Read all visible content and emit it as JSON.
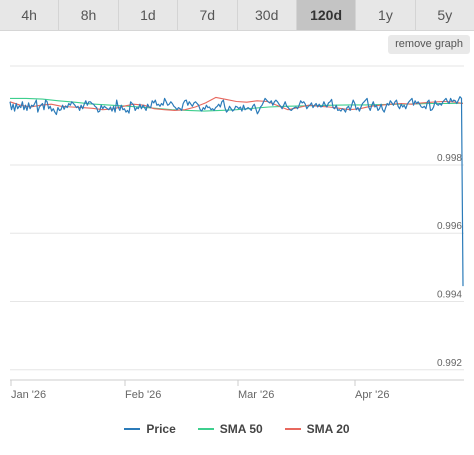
{
  "tabs": [
    {
      "label": "4h",
      "active": false
    },
    {
      "label": "8h",
      "active": false
    },
    {
      "label": "1d",
      "active": false
    },
    {
      "label": "7d",
      "active": false
    },
    {
      "label": "30d",
      "active": false
    },
    {
      "label": "120d",
      "active": true
    },
    {
      "label": "1y",
      "active": false
    },
    {
      "label": "5y",
      "active": false
    }
  ],
  "remove_button": "remove graph",
  "colors": {
    "price": "#2b7bb9",
    "sma50": "#3ecf8e",
    "sma20": "#e8685e"
  },
  "chart_data": {
    "type": "line",
    "title": "",
    "x_ticks": [
      "Jan '26",
      "Feb '26",
      "Mar '26",
      "Apr '26"
    ],
    "y_ticks": [
      "0.998",
      "0.996",
      "0.994",
      "0.992"
    ],
    "ylim": [
      0.9917,
      1.0009
    ],
    "grid": true,
    "legend_position": "bottom",
    "series": [
      {
        "name": "Price",
        "color": "#2b7bb9",
        "values": [
          0.99985,
          0.99962,
          0.99978,
          0.99958,
          0.9998,
          0.99965,
          0.99973,
          0.99968,
          0.99985,
          0.99962,
          0.99975,
          0.9996,
          0.99982,
          0.99965,
          0.99975,
          0.99972,
          0.9998,
          0.9999,
          0.99955,
          0.9997,
          0.99975,
          0.9998,
          0.99962,
          0.9999,
          0.99985,
          0.99965,
          0.99972,
          0.99958,
          0.99965,
          0.99955,
          0.99948,
          0.99968,
          0.9996,
          0.99962,
          0.99975,
          0.99963,
          0.99973,
          0.99968,
          0.9998,
          0.99975,
          0.99985,
          0.9998,
          0.99975,
          0.99968,
          0.99972,
          0.9996,
          0.99975,
          0.99965,
          0.99978,
          0.99988,
          0.99975,
          0.99985,
          0.99985,
          0.9998,
          0.99978,
          0.99972,
          0.99968,
          0.99955,
          0.99958,
          0.99975,
          0.99965,
          0.99972,
          0.99968,
          0.99965,
          0.99962,
          0.9997,
          0.99958,
          0.99972,
          0.99955,
          0.9999,
          0.9997,
          0.9996,
          0.99975,
          0.99962,
          0.99965,
          0.99955,
          0.9996,
          0.99952,
          0.99985,
          0.9998,
          0.99975,
          0.9996,
          0.99968,
          0.99965,
          0.99978,
          0.99965,
          0.99975,
          0.99968,
          0.9996,
          0.99978,
          0.9997,
          0.99968,
          0.99988,
          0.99982,
          0.9999,
          0.99975,
          0.99978,
          0.99972,
          0.9998,
          0.99975,
          0.99995,
          0.99985,
          0.99975,
          0.99978,
          0.99985,
          0.9998,
          0.99972,
          0.99968,
          0.99962,
          0.99968,
          0.99965,
          0.9996,
          0.9998,
          0.99988,
          0.9999,
          0.99975,
          0.99985,
          0.99978,
          0.99972,
          0.99982,
          0.99985,
          0.9998,
          0.99975,
          0.99962,
          0.99958,
          0.99968,
          0.99963,
          0.99975,
          0.99968,
          0.9997,
          0.99962,
          0.99965,
          0.9996,
          0.99968,
          0.99972,
          0.99978,
          0.9997,
          0.99985,
          0.9999,
          0.99968,
          0.99955,
          0.9996,
          0.99972,
          0.99965,
          0.99958,
          0.99962,
          0.99972,
          0.9997,
          0.99965,
          0.9997,
          0.99958,
          0.99975,
          0.99962,
          0.99965,
          0.99968,
          0.99965,
          0.9996,
          0.99972,
          0.99978,
          0.99965,
          0.9995,
          0.99958,
          0.9997,
          0.99975,
          0.99985,
          0.99995,
          0.9999,
          0.99985,
          0.99982,
          0.99988,
          0.99975,
          0.99985,
          0.9999,
          0.99985,
          0.99978,
          0.99972,
          0.99965,
          0.99975,
          0.99985,
          0.99972,
          0.99968,
          0.99962,
          0.9996,
          0.99965,
          0.99968,
          0.9997,
          0.99965,
          0.99975,
          0.99988,
          0.99982,
          0.99985,
          0.99978,
          0.99965,
          0.99972,
          0.99975,
          0.99982,
          0.99968,
          0.99975,
          0.9998,
          0.9997,
          0.99978,
          0.9997,
          0.99972,
          0.99985,
          0.99975,
          0.9997,
          0.99982,
          0.99985,
          0.99992,
          0.99968,
          0.99965,
          0.99975,
          0.9996,
          0.99962,
          0.99958,
          0.99965,
          0.99962,
          0.99955,
          0.99968,
          0.99972,
          0.9996,
          0.99975,
          0.9999,
          0.9998,
          0.99962,
          0.99968,
          0.99958,
          0.9997,
          0.9998,
          0.99985,
          0.9999,
          0.99995,
          0.9997,
          0.9996,
          0.99975,
          0.99985,
          0.9997,
          0.99975,
          0.9996,
          0.99965,
          0.99978,
          0.99962,
          0.99955,
          0.99968,
          0.9998,
          0.99975,
          0.99988,
          0.99982,
          0.99975,
          0.99985,
          0.9999,
          0.99972,
          0.99965,
          0.99978,
          0.9997,
          0.99975,
          0.99965,
          0.99978,
          0.99985,
          0.9999,
          0.99995,
          0.99975,
          0.99988,
          0.9998,
          0.99985,
          0.99978,
          0.9997,
          0.99968,
          0.99972,
          0.99965,
          0.99985,
          0.9999,
          0.9996,
          0.99962,
          0.9997,
          0.99988,
          0.99978,
          0.99975,
          0.9998,
          0.99975,
          0.99985,
          0.9999,
          0.99995,
          0.99985,
          0.9998,
          0.99995,
          0.99985,
          0.9999,
          0.99988,
          0.9998,
          0.9999,
          1.0,
          0.99995,
          0.99445
        ]
      },
      {
        "name": "SMA 50",
        "color": "#3ecf8e",
        "values": [
          0.99995,
          0.99995,
          0.99993,
          0.99988,
          0.99984,
          0.99979,
          0.99976,
          0.99973,
          0.9997,
          0.99966,
          0.99962,
          0.9996,
          0.99958,
          0.9996,
          0.99962,
          0.99966,
          0.9997,
          0.99972,
          0.99973,
          0.99974,
          0.99975,
          0.99976,
          0.99976,
          0.99977,
          0.99978,
          0.99979,
          0.9998,
          0.9998,
          0.99981
        ]
      },
      {
        "name": "SMA 20",
        "color": "#e8685e",
        "values": [
          0.99985,
          0.99975,
          0.9997,
          0.99975,
          0.99978,
          0.99972,
          0.9997,
          0.99968,
          0.99966,
          0.99962,
          0.99964,
          0.99972,
          0.99978,
          0.99975,
          0.99965,
          0.99962,
          0.9996,
          0.99962,
          0.9997,
          0.99982,
          0.99998,
          0.99992,
          0.99986,
          0.99984,
          0.99988,
          0.99986,
          0.99974,
          0.99962,
          0.99968,
          0.99975,
          0.99972,
          0.9997,
          0.99966,
          0.99962,
          0.99965,
          0.99972,
          0.99975,
          0.99978,
          0.9998,
          0.99978,
          0.99982,
          0.99984,
          0.99986,
          0.99985,
          0.9998
        ]
      }
    ]
  }
}
